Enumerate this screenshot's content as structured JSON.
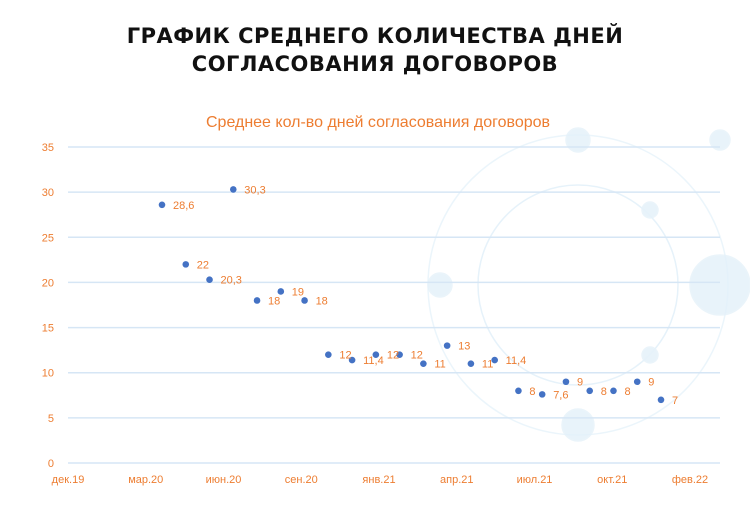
{
  "page_title": [
    "ГРАФИК СРЕДНЕГО КОЛИЧЕСТВА ДНЕЙ",
    "СОГЛАСОВАНИЯ ДОГОВОРОВ"
  ],
  "chart_data": {
    "type": "scatter",
    "title": "Среднее кол-во дней согласования договоров",
    "xlabel": "",
    "ylabel": "",
    "ylim": [
      0,
      35
    ],
    "yticks": [
      0,
      5,
      10,
      15,
      20,
      25,
      30,
      35
    ],
    "xtick_labels": [
      "дек.19",
      "мар.20",
      "июн.20",
      "сен.20",
      "янв.21",
      "апр.21",
      "июл.21",
      "окт.21",
      "фев.22"
    ],
    "grid": true,
    "values": [
      28.6,
      22,
      20.3,
      30.3,
      18,
      19,
      18,
      12,
      11.4,
      12,
      12,
      11,
      13,
      11,
      11.4,
      8,
      7.6,
      9,
      8,
      8,
      9,
      7
    ],
    "labels": [
      "28,6",
      "22",
      "20,3",
      "30,3",
      "18",
      "19",
      "18",
      "12",
      "11,4",
      "12",
      "12",
      "11",
      "13",
      "11",
      "11,4",
      "8",
      "7,6",
      "9",
      "8",
      "8",
      "9",
      "7"
    ],
    "colors": {
      "point": "#4472c4",
      "label": "#ed7d31",
      "grid": "#d6e6f5",
      "title": "#ed7d31"
    }
  }
}
